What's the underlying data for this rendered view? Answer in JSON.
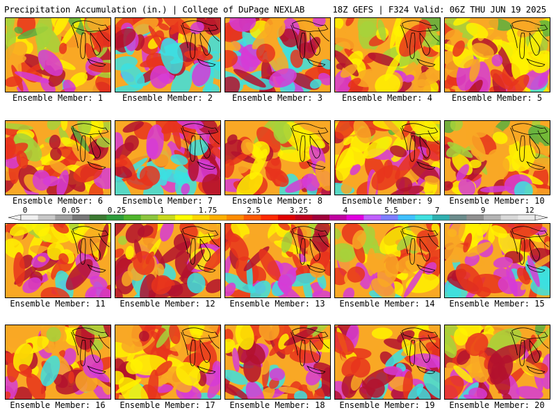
{
  "header": {
    "left_title": "Precipitation Accumulation (in.) | College of DuPage NEXLAB",
    "right_title": "18Z GEFS | F324 Valid: 06Z THU JUN 19 2025"
  },
  "colorbar": {
    "tick_labels": [
      "0",
      "0.05",
      "0.25",
      "1",
      "1.75",
      "2.5",
      "3.25",
      "4",
      "5.5",
      "7",
      "9",
      "12"
    ],
    "colors": [
      "#f0f0f0",
      "#c8c8c8",
      "#a0a0a0",
      "#787878",
      "#3c7a32",
      "#2f9c3c",
      "#4fb52b",
      "#8cc63f",
      "#c8d91e",
      "#ffff00",
      "#ffd700",
      "#ffb000",
      "#ff8c00",
      "#ff5a00",
      "#ff2a00",
      "#e00000",
      "#c0001e",
      "#a0003c",
      "#c000a0",
      "#e000e0",
      "#c060ff",
      "#7f7fff",
      "#40c0ff",
      "#40e0e0",
      "#30b0b0",
      "#6c8c8c",
      "#909090",
      "#b4b4b4",
      "#d8d8d8",
      "#e8e8e8"
    ]
  },
  "map": {
    "colors": {
      "green": "#5caf3f",
      "lightgreen": "#a6d23b",
      "yellow": "#fff200",
      "orange": "#f9a825",
      "red": "#e8341c",
      "darkred": "#b3122e",
      "magenta": "#d63bd6",
      "cyan": "#3ce0e0"
    }
  },
  "panels": [
    {
      "label": "Ensemble Member: 1",
      "intensity": 0.45,
      "seed": 11
    },
    {
      "label": "Ensemble Member: 2",
      "intensity": 0.7,
      "seed": 23
    },
    {
      "label": "Ensemble Member: 3",
      "intensity": 0.75,
      "seed": 37
    },
    {
      "label": "Ensemble Member: 4",
      "intensity": 0.4,
      "seed": 41
    },
    {
      "label": "Ensemble Member: 5",
      "intensity": 0.45,
      "seed": 53
    },
    {
      "label": "Ensemble Member: 6",
      "intensity": 0.45,
      "seed": 67
    },
    {
      "label": "Ensemble Member: 7",
      "intensity": 0.7,
      "seed": 71
    },
    {
      "label": "Ensemble Member: 8",
      "intensity": 0.5,
      "seed": 83
    },
    {
      "label": "Ensemble Member: 9",
      "intensity": 0.5,
      "seed": 97
    },
    {
      "label": "Ensemble Member: 10",
      "intensity": 0.45,
      "seed": 101
    },
    {
      "label": "Ensemble Member: 11",
      "intensity": 0.55,
      "seed": 113
    },
    {
      "label": "Ensemble Member: 12",
      "intensity": 0.6,
      "seed": 127
    },
    {
      "label": "Ensemble Member: 13",
      "intensity": 0.6,
      "seed": 131
    },
    {
      "label": "Ensemble Member: 14",
      "intensity": 0.5,
      "seed": 149
    },
    {
      "label": "Ensemble Member: 15",
      "intensity": 0.65,
      "seed": 151
    },
    {
      "label": "Ensemble Member: 16",
      "intensity": 0.55,
      "seed": 163
    },
    {
      "label": "Ensemble Member: 17",
      "intensity": 0.5,
      "seed": 173
    },
    {
      "label": "Ensemble Member: 18",
      "intensity": 0.6,
      "seed": 181
    },
    {
      "label": "Ensemble Member: 19",
      "intensity": 0.65,
      "seed": 191
    },
    {
      "label": "Ensemble Member: 20",
      "intensity": 0.5,
      "seed": 199
    }
  ]
}
